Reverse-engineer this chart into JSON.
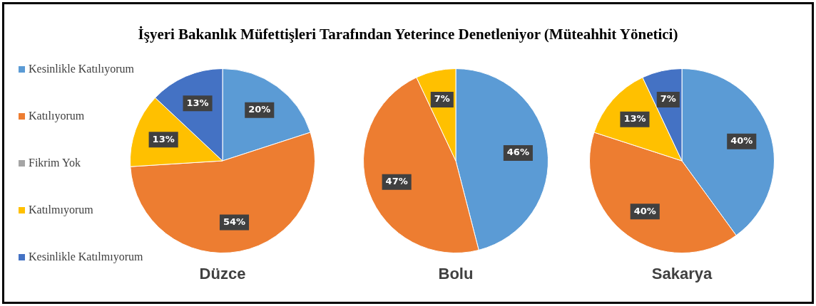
{
  "chart_data": [
    {
      "type": "pie",
      "title": "İşyeri Bakanlık Müfettişleri Tarafından Yeterince Denetleniyor (Müteahhit Yönetici)",
      "xlabel": "Düzce",
      "legend": "left",
      "categories": [
        "Kesinlikle Katılıyorum",
        "Katılıyorum",
        "Fikrim Yok",
        "Katılmıyorum",
        "Kesinlikle Katılmıyorum"
      ],
      "values": [
        20,
        54,
        0,
        13,
        13
      ],
      "value_labels": [
        "20%",
        "54%",
        null,
        "13%",
        "13%"
      ],
      "colors": [
        "#5b9bd5",
        "#ed7d31",
        "#a5a5a5",
        "#ffc000",
        "#4472c4"
      ]
    },
    {
      "type": "pie",
      "xlabel": "Bolu",
      "legend": false,
      "categories": [
        null,
        null,
        null,
        null,
        null
      ],
      "values": [
        46,
        47,
        0,
        7,
        0
      ],
      "value_labels": [
        "46%",
        "47%",
        null,
        "7%",
        null
      ],
      "colors": [
        "#5b9bd5",
        "#ed7d31",
        "#a5a5a5",
        "#ffc000",
        "#4472c4"
      ]
    },
    {
      "type": "pie",
      "xlabel": "Sakarya",
      "legend": false,
      "categories": [
        null,
        null,
        null,
        null,
        null
      ],
      "values": [
        40,
        40,
        0,
        13,
        7
      ],
      "value_labels": [
        "40%",
        "40%",
        null,
        "13%",
        "7%"
      ],
      "colors": [
        "#5b9bd5",
        "#ed7d31",
        "#a5a5a5",
        "#ffc000",
        "#4472c4"
      ]
    }
  ]
}
